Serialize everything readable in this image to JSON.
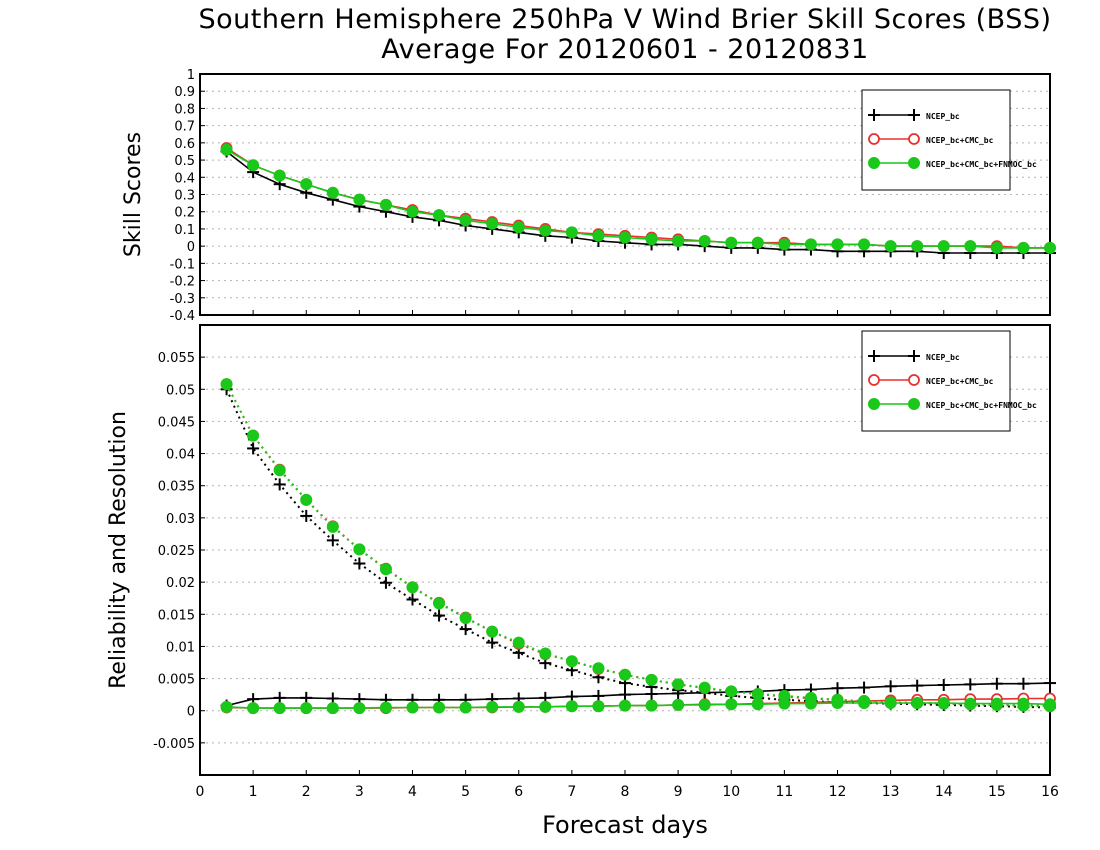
{
  "title_line1": "Southern Hemisphere 250hPa V Wind Brier Skill Scores (BSS)",
  "title_line2": "Average For 20120601 - 20120831",
  "x_label": "Forecast days",
  "colors": {
    "black": "#000000",
    "red": "#e8302c",
    "green": "#19c819",
    "grid": "#b4b4b4"
  },
  "chart_data": [
    {
      "type": "line",
      "ylabel": "Skill Scores",
      "ylim": [
        -0.4,
        1
      ],
      "xlim": [
        0,
        16
      ],
      "yticks": [
        "-0.4",
        "-0.3",
        "-0.2",
        "-0.1",
        "0",
        "0.1",
        "0.2",
        "0.3",
        "0.4",
        "0.5",
        "0.6",
        "0.7",
        "0.8",
        "0.9",
        "1"
      ],
      "xticks": [
        "0",
        "1",
        "2",
        "3",
        "4",
        "5",
        "6",
        "7",
        "8",
        "9",
        "10",
        "11",
        "12",
        "13",
        "14",
        "15",
        "16"
      ],
      "grid": true,
      "legend_position": "top-right",
      "legend": [
        "NCEP_bc",
        "NCEP_bc+CMC_bc",
        "NCEP_bc+CMC_bc+FNMOC_bc"
      ],
      "x": [
        0.5,
        1,
        1.5,
        2,
        2.5,
        3,
        3.5,
        4,
        4.5,
        5,
        5.5,
        6,
        6.5,
        7,
        7.5,
        8,
        8.5,
        9,
        9.5,
        10,
        10.5,
        11,
        11.5,
        12,
        12.5,
        13,
        13.5,
        14,
        14.5,
        15,
        15.5,
        16
      ],
      "series": [
        {
          "name": "NCEP_bc",
          "color": "black",
          "marker": "plus",
          "line": "solid",
          "values": [
            0.55,
            0.43,
            0.36,
            0.31,
            0.27,
            0.23,
            0.2,
            0.17,
            0.15,
            0.12,
            0.1,
            0.08,
            0.06,
            0.05,
            0.03,
            0.02,
            0.01,
            0.01,
            0.0,
            -0.01,
            -0.01,
            -0.02,
            -0.02,
            -0.03,
            -0.03,
            -0.03,
            -0.03,
            -0.04,
            -0.04,
            -0.04,
            -0.04,
            -0.04
          ]
        },
        {
          "name": "NCEP_bc+CMC_bc",
          "color": "red",
          "marker": "circle-open",
          "line": "solid",
          "values": [
            0.57,
            0.47,
            0.41,
            0.36,
            0.31,
            0.27,
            0.24,
            0.21,
            0.18,
            0.16,
            0.14,
            0.12,
            0.1,
            0.08,
            0.07,
            0.06,
            0.05,
            0.04,
            0.03,
            0.02,
            0.02,
            0.02,
            0.01,
            0.01,
            0.01,
            0.0,
            0.0,
            0.0,
            0.0,
            0.0,
            -0.01,
            -0.01
          ]
        },
        {
          "name": "NCEP_bc+CMC_bc+FNMOC_bc",
          "color": "green",
          "marker": "circle-filled",
          "line": "solid",
          "values": [
            0.56,
            0.47,
            0.41,
            0.36,
            0.31,
            0.27,
            0.24,
            0.2,
            0.18,
            0.15,
            0.13,
            0.11,
            0.09,
            0.08,
            0.06,
            0.05,
            0.04,
            0.03,
            0.03,
            0.02,
            0.02,
            0.01,
            0.01,
            0.01,
            0.01,
            0.0,
            0.0,
            0.0,
            0.0,
            -0.01,
            -0.01,
            -0.01
          ]
        }
      ]
    },
    {
      "type": "line",
      "ylabel": "Reliability and Resolution",
      "ylim": [
        -0.01,
        0.06
      ],
      "xlim": [
        0,
        16
      ],
      "yticks": [
        "-0.005",
        "0",
        "0.005",
        "0.01",
        "0.015",
        "0.02",
        "0.025",
        "0.03",
        "0.035",
        "0.04",
        "0.045",
        "0.05",
        "0.055"
      ],
      "xticks": [
        "0",
        "1",
        "2",
        "3",
        "4",
        "5",
        "6",
        "7",
        "8",
        "9",
        "10",
        "11",
        "12",
        "13",
        "14",
        "15",
        "16"
      ],
      "grid": true,
      "legend_position": "top-right",
      "legend": [
        "NCEP_bc",
        "NCEP_bc+CMC_bc",
        "NCEP_bc+CMC_bc+FNMOC_bc"
      ],
      "x": [
        0.5,
        1,
        1.5,
        2,
        2.5,
        3,
        3.5,
        4,
        4.5,
        5,
        5.5,
        6,
        6.5,
        7,
        7.5,
        8,
        8.5,
        9,
        9.5,
        10,
        10.5,
        11,
        11.5,
        12,
        12.5,
        13,
        13.5,
        14,
        14.5,
        15,
        15.5,
        16
      ],
      "series": [
        {
          "name": "NCEP_bc reliability",
          "color": "black",
          "marker": "plus",
          "line": "solid",
          "values": [
            0.0008,
            0.0018,
            0.002,
            0.002,
            0.0019,
            0.0018,
            0.0017,
            0.0017,
            0.0017,
            0.0017,
            0.0018,
            0.0019,
            0.002,
            0.0022,
            0.0023,
            0.0025,
            0.0026,
            0.0027,
            0.0028,
            0.0029,
            0.003,
            0.0032,
            0.0033,
            0.0035,
            0.0036,
            0.0038,
            0.0039,
            0.004,
            0.0041,
            0.0042,
            0.0042,
            0.0043
          ]
        },
        {
          "name": "NCEP_bc resolution",
          "color": "black",
          "marker": "plus",
          "line": "dotted",
          "values": [
            0.05,
            0.0408,
            0.0352,
            0.0303,
            0.0265,
            0.0229,
            0.0199,
            0.0173,
            0.0148,
            0.0127,
            0.0106,
            0.009,
            0.0074,
            0.0063,
            0.0052,
            0.0043,
            0.0037,
            0.0032,
            0.0028,
            0.0023,
            0.002,
            0.0017,
            0.0015,
            0.0013,
            0.0012,
            0.0011,
            0.001,
            0.0009,
            0.0008,
            0.0007,
            0.0006,
            0.0005
          ]
        },
        {
          "name": "NCEP_bc+CMC_bc reliability",
          "color": "red",
          "marker": "circle-open",
          "line": "solid",
          "values": [
            0.0005,
            0.0004,
            0.0004,
            0.0004,
            0.0004,
            0.0004,
            0.0004,
            0.0005,
            0.0005,
            0.0005,
            0.0005,
            0.0006,
            0.0006,
            0.0007,
            0.0007,
            0.0008,
            0.0008,
            0.0009,
            0.001,
            0.001,
            0.0011,
            0.0012,
            0.0013,
            0.0014,
            0.0015,
            0.0016,
            0.0017,
            0.0017,
            0.0018,
            0.0018,
            0.0019,
            0.0019
          ]
        },
        {
          "name": "NCEP_bc+CMC_bc resolution",
          "color": "red",
          "marker": "circle-open",
          "line": "dotted",
          "values": [
            0.0508,
            0.0428,
            0.0375,
            0.0328,
            0.0287,
            0.0251,
            0.0221,
            0.0192,
            0.0168,
            0.0145,
            0.0123,
            0.0104,
            0.0088,
            0.0077,
            0.0065,
            0.0056,
            0.0048,
            0.0041,
            0.0035,
            0.003,
            0.0026,
            0.0022,
            0.0019,
            0.0017,
            0.0015,
            0.0013,
            0.0012,
            0.0011,
            0.001,
            0.0009,
            0.0008,
            0.0008
          ]
        },
        {
          "name": "NCEP_bc+CMC_bc+FNMOC_bc reliability",
          "color": "green",
          "marker": "circle-filled",
          "line": "solid",
          "values": [
            0.0006,
            0.0004,
            0.0004,
            0.0004,
            0.0004,
            0.0004,
            0.0005,
            0.0005,
            0.0005,
            0.0005,
            0.0006,
            0.0006,
            0.0006,
            0.0007,
            0.0007,
            0.0008,
            0.0008,
            0.0009,
            0.0009,
            0.001,
            0.001,
            0.0011,
            0.0011,
            0.0012,
            0.0012,
            0.0012,
            0.0012,
            0.0012,
            0.0011,
            0.0011,
            0.0011,
            0.001
          ]
        },
        {
          "name": "NCEP_bc+CMC_bc+FNMOC_bc resolution",
          "color": "green",
          "marker": "circle-filled",
          "line": "dotted",
          "values": [
            0.0508,
            0.0428,
            0.0374,
            0.0328,
            0.0286,
            0.0251,
            0.022,
            0.0192,
            0.0167,
            0.0144,
            0.0123,
            0.0106,
            0.0089,
            0.0077,
            0.0066,
            0.0056,
            0.0048,
            0.0041,
            0.0036,
            0.003,
            0.0026,
            0.0023,
            0.002,
            0.0017,
            0.0015,
            0.0013,
            0.0012,
            0.0011,
            0.001,
            0.0009,
            0.0008,
            0.0007
          ]
        }
      ]
    }
  ]
}
